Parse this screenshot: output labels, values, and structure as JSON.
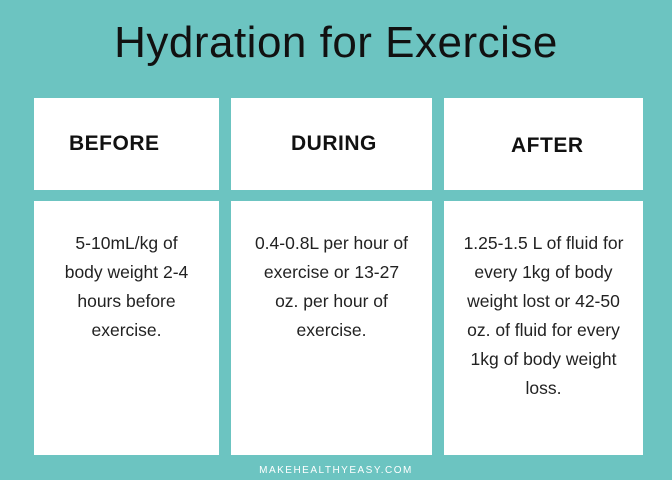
{
  "title": "Hydration for Exercise",
  "columns": [
    {
      "heading": "BEFORE",
      "text": "5-10mL/kg of body weight 2-4 hours before exercise."
    },
    {
      "heading": "DURING",
      "text": "0.4-0.8L per hour of exercise or 13-27 oz. per hour of exercise."
    },
    {
      "heading": "AFTER",
      "text": "1.25-1.5 L of fluid for every 1kg of body weight lost or 42-50 oz. of fluid for every 1kg of body weight loss."
    }
  ],
  "footer": "MAKEHEALTHYEASY.COM",
  "colors": {
    "background": "#6cc4c1",
    "card": "#ffffff",
    "text": "#111111"
  }
}
